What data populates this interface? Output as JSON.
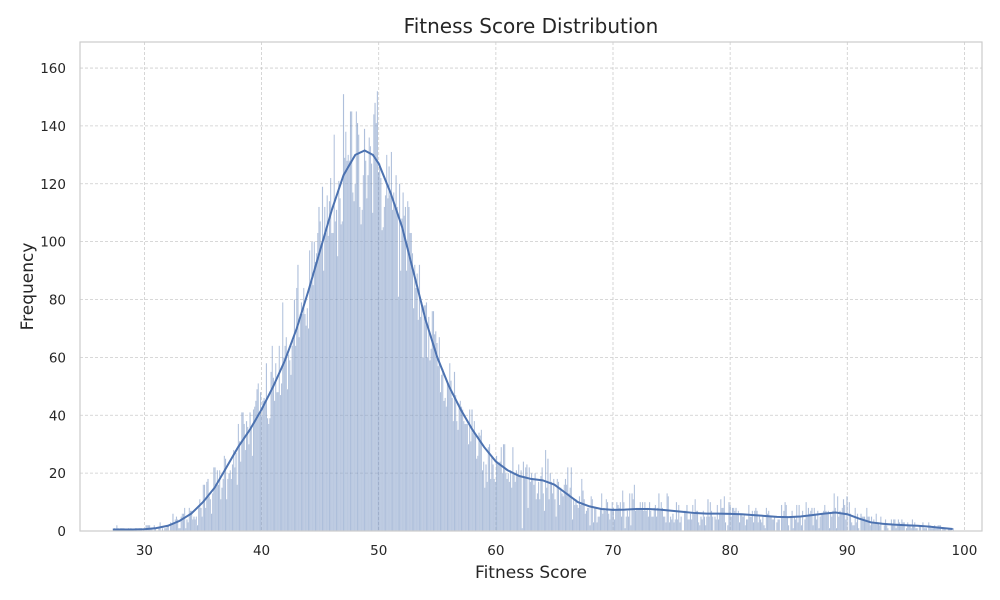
{
  "chart_data": {
    "type": "bar",
    "subtype": "histogram_with_kde",
    "title": "Fitness Score Distribution",
    "xlabel": "Fitness Score",
    "ylabel": "Frequency",
    "xlim": [
      24.5,
      101.5
    ],
    "ylim": [
      0,
      169
    ],
    "x_ticks": [
      30,
      40,
      50,
      60,
      70,
      80,
      90,
      100
    ],
    "y_ticks": [
      0,
      20,
      40,
      60,
      80,
      100,
      120,
      140,
      160
    ],
    "grid": true,
    "bin_range": [
      27.3,
      99.1
    ],
    "bin_count": 720,
    "bar_color": "#4c72b0",
    "kde_color": "#4c72b0",
    "kde_points": [
      [
        27.3,
        0.5
      ],
      [
        29,
        0.5
      ],
      [
        30,
        0.6
      ],
      [
        31,
        1.0
      ],
      [
        32,
        1.8
      ],
      [
        33,
        3.5
      ],
      [
        34,
        6
      ],
      [
        35,
        10
      ],
      [
        36,
        15
      ],
      [
        37,
        22
      ],
      [
        38,
        29
      ],
      [
        39,
        35
      ],
      [
        40,
        42
      ],
      [
        41,
        50
      ],
      [
        42,
        59
      ],
      [
        43,
        70
      ],
      [
        44,
        83
      ],
      [
        45,
        97
      ],
      [
        46,
        111
      ],
      [
        47,
        123
      ],
      [
        48,
        130
      ],
      [
        48.8,
        131.5
      ],
      [
        49.5,
        130
      ],
      [
        50,
        127
      ],
      [
        51,
        117
      ],
      [
        52,
        105
      ],
      [
        53,
        89
      ],
      [
        54,
        73
      ],
      [
        55,
        60
      ],
      [
        56,
        50
      ],
      [
        57,
        42
      ],
      [
        58,
        35
      ],
      [
        59,
        29
      ],
      [
        60,
        24
      ],
      [
        61,
        21
      ],
      [
        62,
        19
      ],
      [
        63,
        18
      ],
      [
        64,
        17.5
      ],
      [
        65,
        16
      ],
      [
        66,
        13
      ],
      [
        67,
        10
      ],
      [
        68,
        8.5
      ],
      [
        69,
        7.6
      ],
      [
        70,
        7.3
      ],
      [
        71,
        7.4
      ],
      [
        72,
        7.6
      ],
      [
        73,
        7.6
      ],
      [
        74,
        7.4
      ],
      [
        75,
        7.0
      ],
      [
        76,
        6.6
      ],
      [
        77,
        6.2
      ],
      [
        78,
        6.0
      ],
      [
        79,
        6.0
      ],
      [
        80,
        5.9
      ],
      [
        81,
        5.8
      ],
      [
        82,
        5.5
      ],
      [
        83,
        5.2
      ],
      [
        84,
        4.9
      ],
      [
        85,
        4.8
      ],
      [
        86,
        5.0
      ],
      [
        87,
        5.5
      ],
      [
        88,
        6.0
      ],
      [
        89,
        6.4
      ],
      [
        90,
        5.8
      ],
      [
        91,
        4.3
      ],
      [
        92,
        3.0
      ],
      [
        93,
        2.5
      ],
      [
        94,
        2.2
      ],
      [
        95,
        2.0
      ],
      [
        96,
        1.8
      ],
      [
        97,
        1.5
      ],
      [
        98,
        1.1
      ],
      [
        99,
        0.7
      ]
    ]
  }
}
